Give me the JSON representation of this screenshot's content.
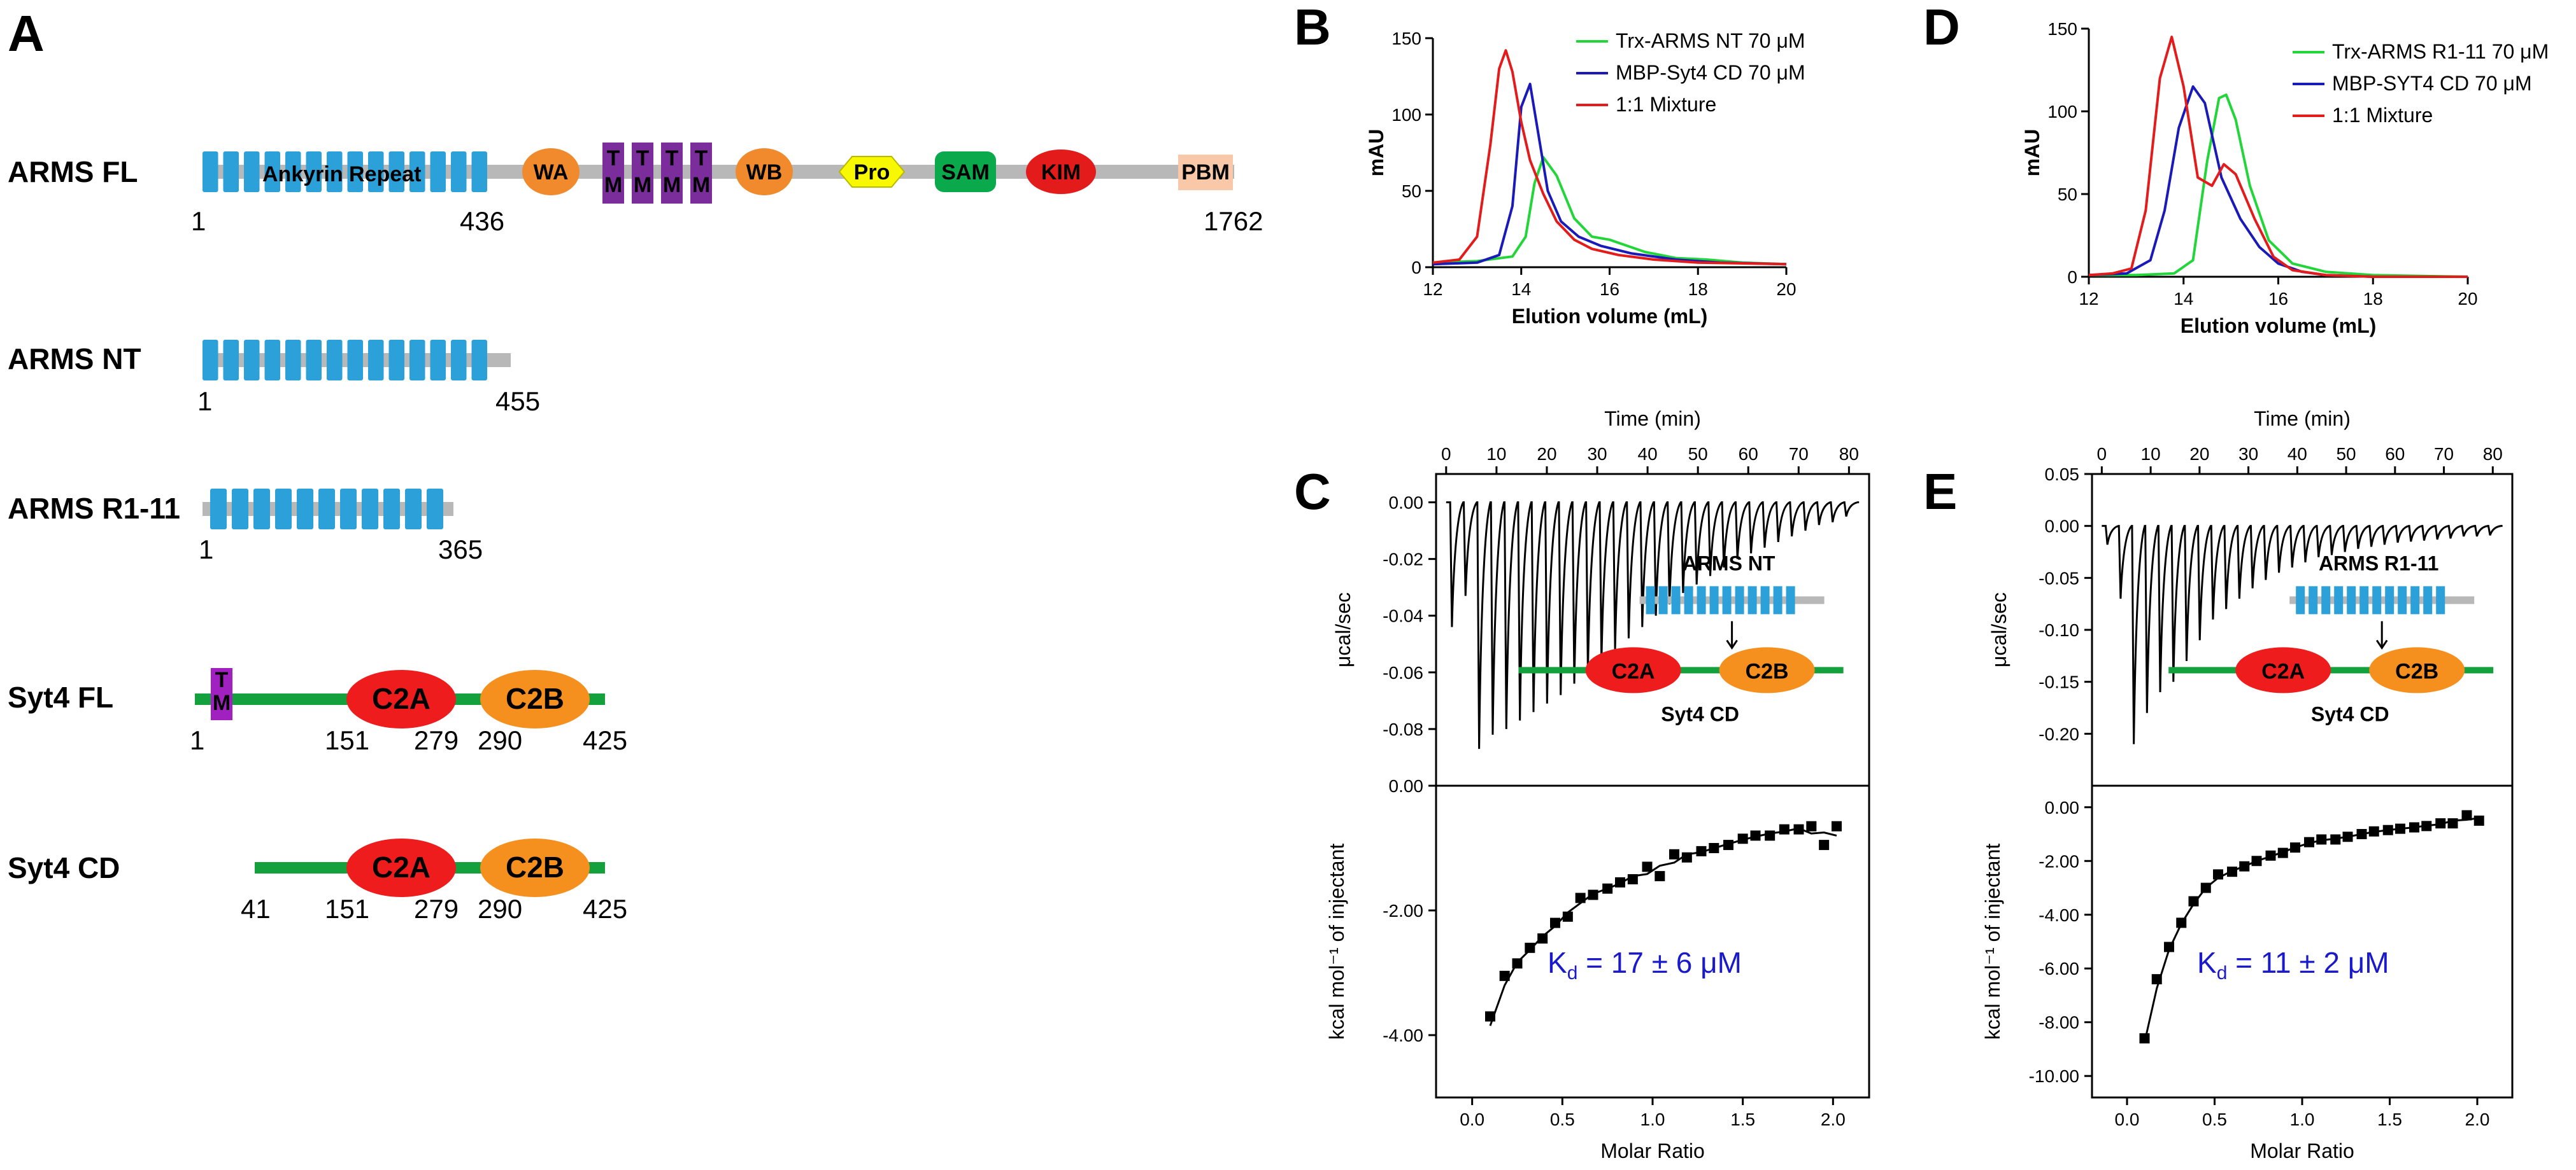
{
  "panel_labels": {
    "a": "A",
    "b": "B",
    "c": "C",
    "d": "D",
    "e": "E"
  },
  "constructs": {
    "arms_fl": {
      "name": "ARMS FL",
      "start": "1",
      "ank_end": "436",
      "end": "1762",
      "ank_label": "Ankyrin Repeat",
      "wa": "WA",
      "tm": "TM",
      "wb": "WB",
      "pro": "Pro",
      "sam": "SAM",
      "kim": "KIM",
      "pbm": "PBM"
    },
    "arms_nt": {
      "name": "ARMS NT",
      "start": "1",
      "end": "455"
    },
    "arms_r": {
      "name": "ARMS R1-11",
      "start": "1",
      "end": "365"
    },
    "syt4_fl": {
      "name": "Syt4 FL",
      "start": "1",
      "c2a": "C2A",
      "c2b": "C2B",
      "c2a_start": "151",
      "c2a_end": "279",
      "c2b_start": "290",
      "end": "425",
      "tm": "TM"
    },
    "syt4_cd": {
      "name": "Syt4 CD",
      "start": "41",
      "c2a": "C2A",
      "c2b": "C2B",
      "c2a_start": "151",
      "c2a_end": "279",
      "c2b_start": "290",
      "end": "425"
    }
  },
  "colors": {
    "ankyrin": "#2ca0d8",
    "linker": "#b8b8b8",
    "wa_wb": "#f08a2c",
    "tm": "#7c2d9c",
    "pro": "#f8f800",
    "sam": "#0aaa4c",
    "kim": "#e41b1b",
    "pbm": "#f8c8a8",
    "syt_line": "#14a03c",
    "c2a": "#ee1c1c",
    "c2b": "#f5901e",
    "green": "#22d63a",
    "blue": "#1a1ab8",
    "red": "#e41b1b"
  },
  "chart_data": [
    {
      "id": "B",
      "type": "line",
      "xlabel": "Elution volume (mL)",
      "ylabel": "mAU",
      "xlim": [
        12,
        20
      ],
      "ylim": [
        0,
        150
      ],
      "xticks": [
        "12",
        "14",
        "16",
        "18",
        "20"
      ],
      "yticks": [
        "0",
        "50",
        "100",
        "150"
      ],
      "legend": [
        "Trx-ARMS NT  70 μM",
        "MBP-Syt4 CD  70 μM",
        "1:1 Mixture"
      ],
      "series": [
        {
          "name": "Trx-ARMS NT  70 μM",
          "x": [
            12,
            13,
            13.8,
            14.1,
            14.3,
            14.5,
            14.8,
            15.2,
            15.6,
            16.0,
            16.3,
            16.8,
            17.5,
            18.2,
            19,
            20
          ],
          "y": [
            3,
            4,
            7,
            20,
            55,
            72,
            60,
            32,
            20,
            18,
            15,
            10,
            6,
            5,
            3,
            2
          ]
        },
        {
          "name": "MBP-Syt4 CD  70 μM",
          "x": [
            12,
            13,
            13.5,
            13.8,
            14.0,
            14.2,
            14.4,
            14.6,
            14.9,
            15.3,
            15.8,
            16.5,
            17.5,
            18.5,
            20
          ],
          "y": [
            2,
            3,
            8,
            40,
            105,
            120,
            85,
            50,
            30,
            20,
            14,
            9,
            5,
            3,
            2
          ]
        },
        {
          "name": "1:1 Mixture",
          "x": [
            12,
            12.6,
            13.0,
            13.3,
            13.5,
            13.65,
            13.8,
            14.0,
            14.2,
            14.5,
            14.8,
            15.2,
            15.6,
            16.2,
            17,
            18,
            20
          ],
          "y": [
            3,
            5,
            20,
            80,
            130,
            142,
            128,
            95,
            70,
            48,
            30,
            18,
            12,
            8,
            5,
            3,
            2
          ]
        }
      ]
    },
    {
      "id": "D",
      "type": "line",
      "xlabel": "Elution volume (mL)",
      "ylabel": "mAU",
      "xlim": [
        12,
        20
      ],
      "ylim": [
        0,
        150
      ],
      "xticks": [
        "12",
        "14",
        "16",
        "18",
        "20"
      ],
      "yticks": [
        "0",
        "50",
        "100",
        "150"
      ],
      "legend": [
        "Trx-ARMS R1-11 70 μM",
        "MBP-SYT4 CD 70 μM",
        "1:1 Mixture"
      ],
      "series": [
        {
          "name": "Trx-ARMS R1-11 70 μM",
          "x": [
            12,
            13,
            13.8,
            14.2,
            14.5,
            14.75,
            14.9,
            15.1,
            15.4,
            15.8,
            16.3,
            17,
            18,
            20
          ],
          "y": [
            1,
            1,
            2,
            10,
            70,
            108,
            110,
            95,
            55,
            22,
            8,
            3,
            1,
            0
          ]
        },
        {
          "name": "MBP-SYT4 CD 70 μM",
          "x": [
            12,
            12.8,
            13.3,
            13.6,
            13.9,
            14.2,
            14.45,
            14.8,
            15.2,
            15.6,
            16.0,
            16.5,
            17,
            18,
            20
          ],
          "y": [
            1,
            2,
            10,
            40,
            90,
            115,
            105,
            60,
            35,
            18,
            8,
            3,
            1,
            0,
            0
          ]
        },
        {
          "name": "1:1 Mixture",
          "x": [
            12,
            12.5,
            12.9,
            13.2,
            13.5,
            13.75,
            14.0,
            14.3,
            14.6,
            14.85,
            15.1,
            15.5,
            15.9,
            16.3,
            17,
            18,
            20
          ],
          "y": [
            1,
            2,
            5,
            40,
            120,
            145,
            115,
            60,
            55,
            68,
            62,
            35,
            12,
            4,
            1,
            0,
            0
          ]
        }
      ]
    },
    {
      "id": "C",
      "type": "scatter",
      "top_xlabel": "Time (min)",
      "top_ylabel": "μcal/sec",
      "top_xlim": [
        -2,
        84
      ],
      "top_ylim": [
        -0.1,
        0.01
      ],
      "top_xticks": [
        "0",
        "10",
        "20",
        "30",
        "40",
        "50",
        "60",
        "70",
        "80"
      ],
      "top_yticks": [
        "0.00",
        "-0.02",
        "-0.04",
        "-0.06",
        "-0.08"
      ],
      "injections": 30,
      "peak_depths": [
        -0.044,
        -0.033,
        -0.087,
        -0.082,
        -0.08,
        -0.077,
        -0.074,
        -0.071,
        -0.068,
        -0.064,
        -0.06,
        -0.056,
        -0.052,
        -0.048,
        -0.044,
        -0.04,
        -0.036,
        -0.032,
        -0.029,
        -0.026,
        -0.023,
        -0.02,
        -0.018,
        -0.016,
        -0.014,
        -0.012,
        -0.01,
        -0.008,
        -0.007,
        -0.005
      ],
      "bottom_xlabel": "Molar Ratio",
      "bottom_ylabel": "kcal mol⁻¹ of injectant",
      "bottom_xlim": [
        -0.2,
        2.2
      ],
      "bottom_ylim": [
        -5.0,
        0
      ],
      "bottom_xticks": [
        "0.0",
        "0.5",
        "1.0",
        "1.5",
        "2.0"
      ],
      "bottom_yticks": [
        "0.00",
        "-2.00",
        "-4.00"
      ],
      "x": [
        0.1,
        0.18,
        0.25,
        0.32,
        0.39,
        0.46,
        0.53,
        0.6,
        0.67,
        0.75,
        0.82,
        0.89,
        0.97,
        1.04,
        1.12,
        1.19,
        1.27,
        1.34,
        1.42,
        1.5,
        1.57,
        1.65,
        1.73,
        1.81,
        1.88,
        1.95,
        2.02
      ],
      "y": [
        -3.7,
        -3.05,
        -2.85,
        -2.6,
        -2.45,
        -2.2,
        -2.1,
        -1.8,
        -1.75,
        -1.65,
        -1.55,
        -1.5,
        -1.3,
        -1.45,
        -1.1,
        -1.15,
        -1.05,
        -1.0,
        -0.95,
        -0.85,
        -0.8,
        -0.8,
        -0.7,
        -0.7,
        -0.65,
        -0.95,
        -0.65
      ],
      "fit_kd_uM": 17,
      "kd_text": "17 ± 6 μM",
      "kd_prefix": "K",
      "kd_sub": "d",
      "inset_top": "ARMS NT",
      "inset_bottom": "Syt4 CD",
      "inset_c2a": "C2A",
      "inset_c2b": "C2B"
    },
    {
      "id": "E",
      "type": "scatter",
      "top_xlabel": "Time (min)",
      "top_ylabel": "μcal/sec",
      "top_xlim": [
        -2,
        84
      ],
      "top_ylim": [
        -0.25,
        0.05
      ],
      "top_xticks": [
        "0",
        "10",
        "20",
        "30",
        "40",
        "50",
        "60",
        "70",
        "80"
      ],
      "top_yticks": [
        "0.05",
        "0.00",
        "-0.05",
        "-0.10",
        "-0.15",
        "-0.20"
      ],
      "injections": 30,
      "peak_depths": [
        -0.018,
        -0.07,
        -0.21,
        -0.18,
        -0.16,
        -0.15,
        -0.13,
        -0.11,
        -0.09,
        -0.08,
        -0.07,
        -0.06,
        -0.052,
        -0.045,
        -0.04,
        -0.035,
        -0.03,
        -0.028,
        -0.025,
        -0.022,
        -0.02,
        -0.018,
        -0.016,
        -0.015,
        -0.014,
        -0.013,
        -0.012,
        -0.01,
        -0.01,
        -0.009
      ],
      "bottom_xlabel": "Molar Ratio",
      "bottom_ylabel": "kcal mol⁻¹ of injectant",
      "bottom_xlim": [
        -0.2,
        2.2
      ],
      "bottom_ylim": [
        -10.8,
        0.8
      ],
      "bottom_xticks": [
        "0.0",
        "0.5",
        "1.0",
        "1.5",
        "2.0"
      ],
      "bottom_yticks": [
        "0.00",
        "-2.00",
        "-4.00",
        "-6.00",
        "-8.00",
        "-10.00"
      ],
      "x": [
        0.1,
        0.17,
        0.24,
        0.31,
        0.38,
        0.45,
        0.52,
        0.6,
        0.67,
        0.74,
        0.82,
        0.89,
        0.96,
        1.04,
        1.11,
        1.19,
        1.26,
        1.34,
        1.41,
        1.49,
        1.56,
        1.64,
        1.71,
        1.79,
        1.86,
        1.94,
        2.01
      ],
      "y": [
        -8.6,
        -6.4,
        -5.2,
        -4.3,
        -3.5,
        -3.0,
        -2.5,
        -2.4,
        -2.2,
        -2.0,
        -1.8,
        -1.7,
        -1.5,
        -1.3,
        -1.2,
        -1.2,
        -1.1,
        -1.0,
        -0.9,
        -0.85,
        -0.8,
        -0.75,
        -0.7,
        -0.6,
        -0.6,
        -0.3,
        -0.5
      ],
      "fit_kd_uM": 11,
      "kd_text": "11 ± 2 μM",
      "kd_prefix": "K",
      "kd_sub": "d",
      "inset_top": "ARMS R1-11",
      "inset_bottom": "Syt4 CD",
      "inset_c2a": "C2A",
      "inset_c2b": "C2B"
    }
  ]
}
